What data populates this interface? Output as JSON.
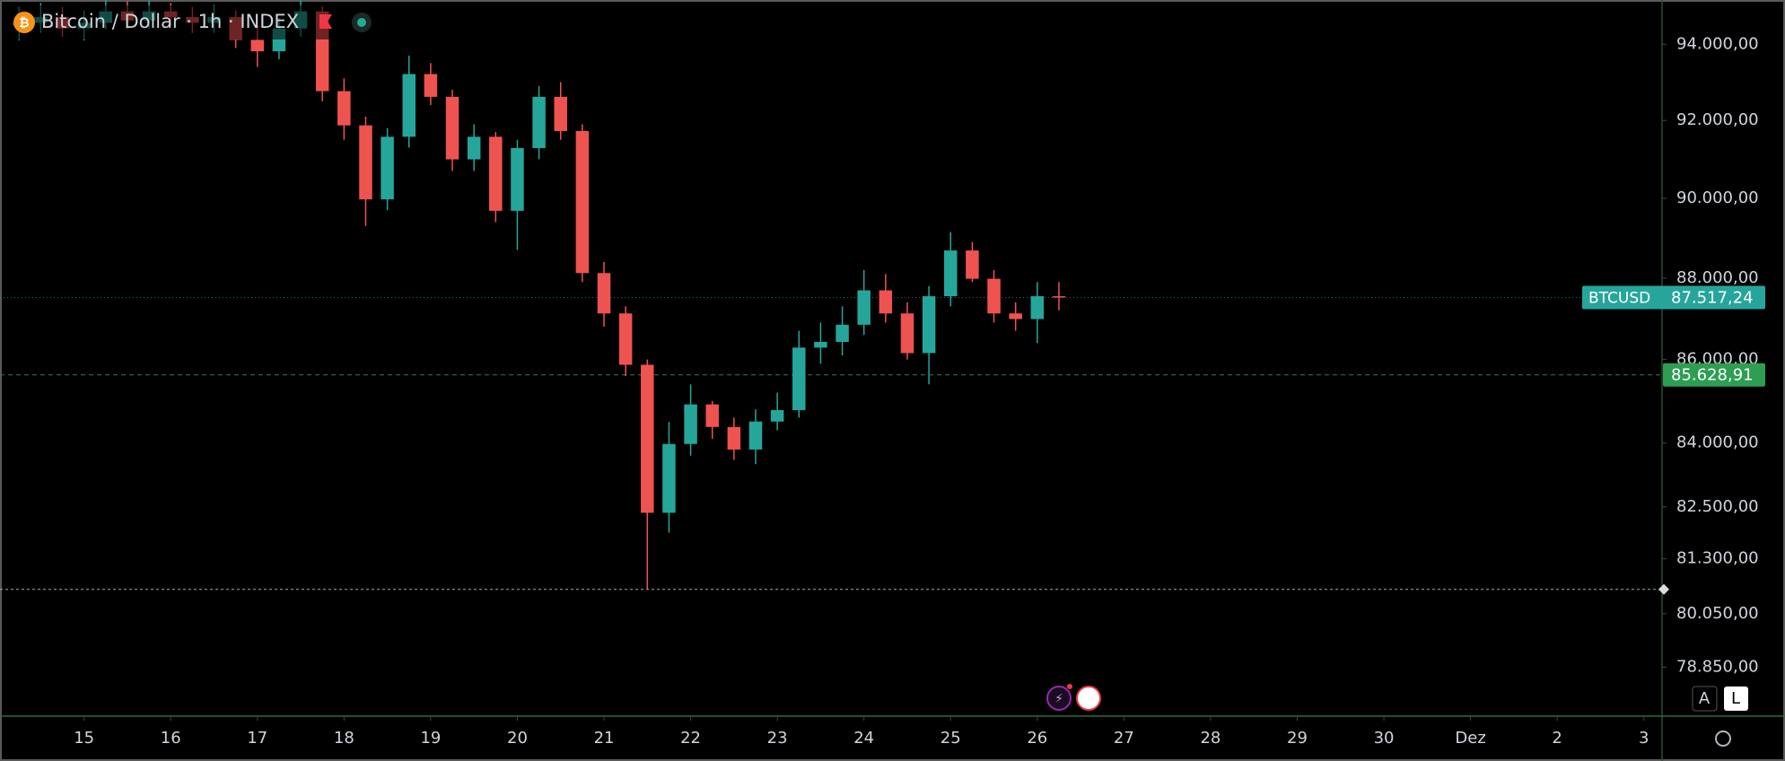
{
  "chart_data": {
    "type": "candlestick",
    "title": "Bitcoin / Dollar · 1h · INDEX",
    "x": [
      14.25,
      14.5,
      14.75,
      15,
      15.25,
      15.5,
      15.75,
      16,
      16.25,
      16.5,
      16.75,
      17,
      17.25,
      17.5,
      17.75,
      18,
      18.25,
      18.5,
      18.75,
      19,
      19.25,
      19.5,
      19.75,
      20,
      20.25,
      20.5,
      20.75,
      21,
      21.25,
      21.5,
      21.75,
      22,
      22.25,
      22.5,
      22.75,
      23,
      23.25,
      23.5,
      23.75,
      24,
      24.25,
      24.5,
      24.75,
      25,
      25.25,
      25.5,
      25.75,
      26,
      26.25
    ],
    "open": [
      94500,
      94570,
      94722,
      94419,
      94570,
      94875,
      94630,
      94875,
      94722,
      94570,
      94722,
      94115,
      93813,
      94419,
      94875,
      92764,
      91873,
      89974,
      91578,
      93213,
      92615,
      90996,
      91578,
      89685,
      91286,
      92615,
      91726,
      88123,
      87126,
      85873,
      82361,
      83976,
      84918,
      84379,
      83844,
      84509,
      84782,
      86290,
      86429,
      86848,
      87695,
      87126,
      86156,
      87550,
      88687,
      87982,
      87126,
      86988,
      87550
    ],
    "high": [
      95000,
      95100,
      95000,
      94900,
      95200,
      95150,
      95200,
      95100,
      95000,
      95050,
      94900,
      94500,
      94700,
      95200,
      95000,
      93100,
      92100,
      91800,
      93700,
      93500,
      92800,
      91900,
      91700,
      91500,
      92900,
      93000,
      91900,
      88400,
      87300,
      86000,
      84500,
      85400,
      85000,
      84600,
      84800,
      85200,
      86700,
      86900,
      87300,
      88200,
      88100,
      87400,
      87800,
      89150,
      88900,
      88200,
      87400,
      87900,
      87900
    ],
    "low": [
      94100,
      94300,
      94200,
      94100,
      94400,
      94400,
      94400,
      94500,
      94300,
      94300,
      93900,
      93400,
      93600,
      94200,
      92500,
      91500,
      89300,
      89700,
      91300,
      92400,
      90700,
      90700,
      89400,
      88700,
      91000,
      91500,
      87900,
      86800,
      85600,
      80600,
      81900,
      83700,
      84100,
      83600,
      83500,
      84300,
      84600,
      85900,
      86100,
      86600,
      86900,
      86000,
      85400,
      87300,
      87900,
      86900,
      86700,
      86400,
      87200
    ],
    "close": [
      94570,
      94722,
      94419,
      94570,
      94875,
      94630,
      94875,
      94722,
      94570,
      94722,
      94115,
      93813,
      94419,
      94875,
      92764,
      91873,
      89974,
      91578,
      93213,
      92615,
      90996,
      91578,
      89685,
      91286,
      92615,
      91726,
      88123,
      87126,
      85873,
      82361,
      83976,
      84918,
      84379,
      83844,
      84509,
      84782,
      86290,
      86429,
      86848,
      87695,
      87126,
      86156,
      87550,
      88687,
      87982,
      87126,
      86988,
      87550,
      87517.24
    ],
    "up_color": "#26a69a",
    "down_color": "#ef5350",
    "log_scale": true,
    "grid": false,
    "xlim": [
      14.03,
      33.21
    ],
    "xticks": [
      15,
      16,
      17,
      18,
      19,
      20,
      21,
      22,
      23,
      24,
      25,
      26,
      27,
      28,
      29,
      30,
      {
        "value": 31,
        "label": "Dez"
      },
      {
        "value": 32,
        "label": "2"
      },
      {
        "value": 33,
        "label": "3"
      }
    ],
    "ylim": [
      77770,
      95180
    ],
    "yticks": [
      {
        "value": 94000,
        "label": "94.000,00"
      },
      {
        "value": 92000,
        "label": "92.000,00"
      },
      {
        "value": 90000,
        "label": "90.000,00"
      },
      {
        "value": 88000,
        "label": "88.000,00"
      },
      {
        "value": 86000,
        "label": "86.000,00"
      },
      {
        "value": 84000,
        "label": "84.000,00"
      },
      {
        "value": 82500,
        "label": "82.500,00"
      },
      {
        "value": 81300,
        "label": "81.300,00"
      },
      {
        "value": 80050,
        "label": "80.050,00"
      },
      {
        "value": 78850,
        "label": "78.850,00"
      }
    ],
    "symbol_label": "BTCUSD",
    "last_price": {
      "value": 87517.24,
      "label": "87.517,24"
    },
    "reference_price": {
      "value": 85628.91,
      "label": "85.628,91"
    },
    "low_line": 80600
  },
  "scale_buttons": [
    "A",
    "L"
  ]
}
